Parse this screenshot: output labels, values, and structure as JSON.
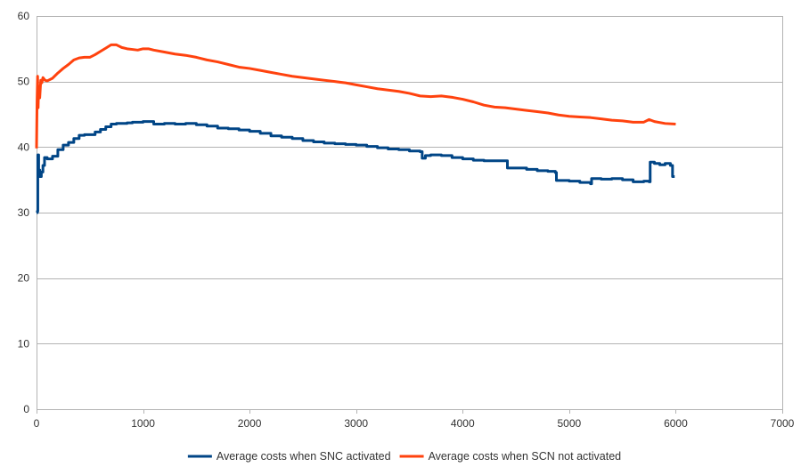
{
  "chart_data": {
    "type": "line",
    "title": "",
    "xlabel": "",
    "ylabel": "",
    "xlim": [
      0,
      7000
    ],
    "ylim": [
      0,
      60
    ],
    "x_ticks": [
      0,
      1000,
      2000,
      3000,
      4000,
      5000,
      6000,
      7000
    ],
    "y_ticks": [
      0,
      10,
      20,
      30,
      40,
      50,
      60
    ],
    "grid": "horizontal",
    "legend_position": "bottom",
    "series": [
      {
        "name": "Average costs when SNC activated",
        "color": "#004586",
        "step": true,
        "points": [
          [
            0,
            30
          ],
          [
            8,
            30.2
          ],
          [
            12,
            38.8
          ],
          [
            20,
            36.5
          ],
          [
            30,
            35.5
          ],
          [
            45,
            36.2
          ],
          [
            60,
            37.2
          ],
          [
            75,
            38.4
          ],
          [
            100,
            38.2
          ],
          [
            150,
            38.6
          ],
          [
            200,
            39.6
          ],
          [
            250,
            40.3
          ],
          [
            300,
            40.7
          ],
          [
            350,
            41.3
          ],
          [
            400,
            41.8
          ],
          [
            450,
            41.9
          ],
          [
            500,
            41.9
          ],
          [
            550,
            42.3
          ],
          [
            600,
            42.7
          ],
          [
            650,
            43.1
          ],
          [
            700,
            43.5
          ],
          [
            750,
            43.6
          ],
          [
            800,
            43.6
          ],
          [
            850,
            43.7
          ],
          [
            900,
            43.8
          ],
          [
            950,
            43.8
          ],
          [
            1000,
            43.9
          ],
          [
            1050,
            43.9
          ],
          [
            1100,
            43.5
          ],
          [
            1200,
            43.6
          ],
          [
            1300,
            43.5
          ],
          [
            1400,
            43.6
          ],
          [
            1500,
            43.4
          ],
          [
            1600,
            43.2
          ],
          [
            1700,
            42.9
          ],
          [
            1800,
            42.8
          ],
          [
            1900,
            42.6
          ],
          [
            2000,
            42.4
          ],
          [
            2100,
            42.1
          ],
          [
            2200,
            41.7
          ],
          [
            2300,
            41.5
          ],
          [
            2400,
            41.3
          ],
          [
            2500,
            41.0
          ],
          [
            2600,
            40.8
          ],
          [
            2700,
            40.6
          ],
          [
            2800,
            40.5
          ],
          [
            2900,
            40.4
          ],
          [
            3000,
            40.3
          ],
          [
            3100,
            40.1
          ],
          [
            3200,
            39.9
          ],
          [
            3300,
            39.7
          ],
          [
            3400,
            39.6
          ],
          [
            3500,
            39.4
          ],
          [
            3600,
            39.3
          ],
          [
            3620,
            38.3
          ],
          [
            3650,
            38.7
          ],
          [
            3700,
            38.8
          ],
          [
            3800,
            38.7
          ],
          [
            3900,
            38.4
          ],
          [
            4000,
            38.2
          ],
          [
            4100,
            38.0
          ],
          [
            4200,
            37.9
          ],
          [
            4300,
            37.9
          ],
          [
            4400,
            37.9
          ],
          [
            4420,
            36.8
          ],
          [
            4500,
            36.8
          ],
          [
            4600,
            36.6
          ],
          [
            4700,
            36.4
          ],
          [
            4800,
            36.3
          ],
          [
            4870,
            36.1
          ],
          [
            4880,
            34.9
          ],
          [
            5000,
            34.8
          ],
          [
            5100,
            34.6
          ],
          [
            5200,
            34.4
          ],
          [
            5210,
            35.2
          ],
          [
            5300,
            35.1
          ],
          [
            5400,
            35.2
          ],
          [
            5500,
            35.0
          ],
          [
            5600,
            34.7
          ],
          [
            5700,
            34.8
          ],
          [
            5750,
            34.7
          ],
          [
            5760,
            37.7
          ],
          [
            5800,
            37.5
          ],
          [
            5850,
            37.3
          ],
          [
            5900,
            37.5
          ],
          [
            5950,
            37.2
          ],
          [
            5970,
            35.5
          ],
          [
            5990,
            35.5
          ]
        ]
      },
      {
        "name": "Average costs when SCN not activated",
        "color": "#ff420e",
        "step": false,
        "points": [
          [
            0,
            39.8
          ],
          [
            5,
            47
          ],
          [
            10,
            50.8
          ],
          [
            15,
            46
          ],
          [
            20,
            49.2
          ],
          [
            30,
            47.5
          ],
          [
            40,
            50.2
          ],
          [
            50,
            49.8
          ],
          [
            60,
            50.6
          ],
          [
            80,
            50.2
          ],
          [
            100,
            50.1
          ],
          [
            150,
            50.5
          ],
          [
            200,
            51.3
          ],
          [
            250,
            52.0
          ],
          [
            300,
            52.6
          ],
          [
            350,
            53.3
          ],
          [
            400,
            53.6
          ],
          [
            450,
            53.7
          ],
          [
            500,
            53.7
          ],
          [
            550,
            54.1
          ],
          [
            600,
            54.6
          ],
          [
            650,
            55.1
          ],
          [
            700,
            55.6
          ],
          [
            750,
            55.6
          ],
          [
            800,
            55.2
          ],
          [
            850,
            55.0
          ],
          [
            900,
            54.9
          ],
          [
            950,
            54.8
          ],
          [
            1000,
            55.0
          ],
          [
            1050,
            55.0
          ],
          [
            1100,
            54.8
          ],
          [
            1200,
            54.5
          ],
          [
            1300,
            54.2
          ],
          [
            1400,
            54.0
          ],
          [
            1500,
            53.7
          ],
          [
            1600,
            53.3
          ],
          [
            1700,
            53.0
          ],
          [
            1800,
            52.6
          ],
          [
            1900,
            52.2
          ],
          [
            2000,
            52.0
          ],
          [
            2100,
            51.7
          ],
          [
            2200,
            51.4
          ],
          [
            2300,
            51.1
          ],
          [
            2400,
            50.8
          ],
          [
            2500,
            50.6
          ],
          [
            2600,
            50.4
          ],
          [
            2700,
            50.2
          ],
          [
            2800,
            50.0
          ],
          [
            2900,
            49.8
          ],
          [
            3000,
            49.5
          ],
          [
            3100,
            49.2
          ],
          [
            3200,
            48.9
          ],
          [
            3300,
            48.7
          ],
          [
            3400,
            48.5
          ],
          [
            3500,
            48.2
          ],
          [
            3600,
            47.8
          ],
          [
            3700,
            47.7
          ],
          [
            3800,
            47.8
          ],
          [
            3900,
            47.6
          ],
          [
            4000,
            47.3
          ],
          [
            4100,
            46.9
          ],
          [
            4200,
            46.4
          ],
          [
            4300,
            46.1
          ],
          [
            4400,
            46.0
          ],
          [
            4500,
            45.8
          ],
          [
            4600,
            45.6
          ],
          [
            4700,
            45.4
          ],
          [
            4800,
            45.2
          ],
          [
            4900,
            44.9
          ],
          [
            5000,
            44.7
          ],
          [
            5100,
            44.6
          ],
          [
            5200,
            44.5
          ],
          [
            5300,
            44.3
          ],
          [
            5400,
            44.1
          ],
          [
            5500,
            44.0
          ],
          [
            5600,
            43.8
          ],
          [
            5700,
            43.8
          ],
          [
            5750,
            44.2
          ],
          [
            5800,
            43.9
          ],
          [
            5900,
            43.6
          ],
          [
            6000,
            43.5
          ]
        ]
      }
    ]
  }
}
